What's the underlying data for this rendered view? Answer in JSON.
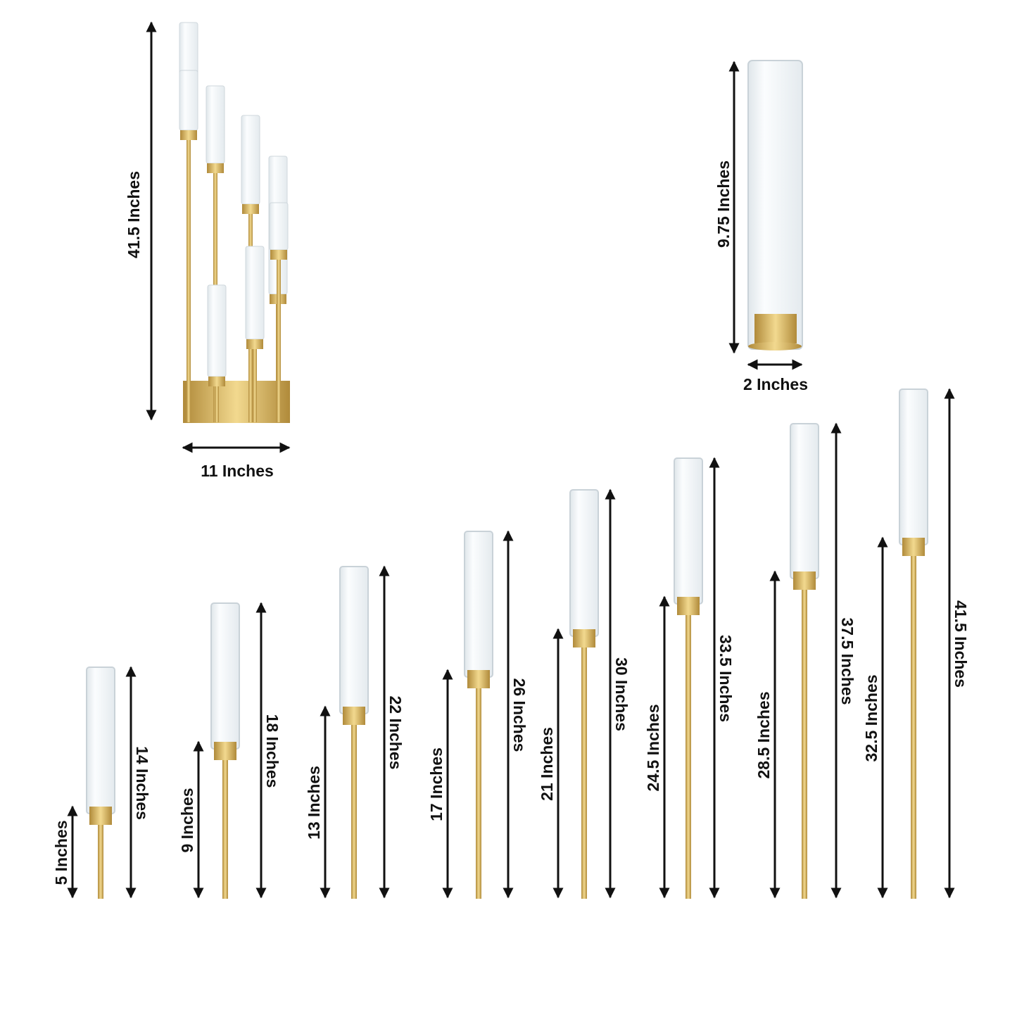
{
  "colors": {
    "gold": "#d9b45f",
    "gold_dark": "#b08a3a",
    "glass": "#eef3f5",
    "arrow": "#111111"
  },
  "candelabra": {
    "height_label": "41.5 Inches",
    "width_label": "11 Inches"
  },
  "glass_chimney": {
    "height_label": "9.75 Inches",
    "width_label": "2 Inches"
  },
  "holders": [
    {
      "holder_label": "5 Inches",
      "total_label": "14 Inches"
    },
    {
      "holder_label": "9 Inches",
      "total_label": "18 Inches"
    },
    {
      "holder_label": "13 Inches",
      "total_label": "22 Inches"
    },
    {
      "holder_label": "17 Inches",
      "total_label": "26 Inches"
    },
    {
      "holder_label": "21 Inches",
      "total_label": "30 Inches"
    },
    {
      "holder_label": "24.5 Inches",
      "total_label": "33.5 Inches"
    },
    {
      "holder_label": "28.5 Inches",
      "total_label": "37.5 Inches"
    },
    {
      "holder_label": "32.5 Inches",
      "total_label": "41.5 Inches"
    }
  ]
}
